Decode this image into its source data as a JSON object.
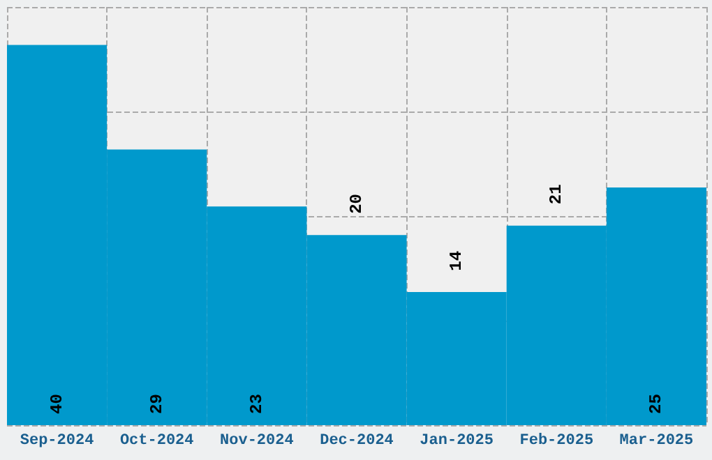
{
  "chart_data": {
    "type": "bar",
    "categories": [
      "Sep-2024",
      "Oct-2024",
      "Nov-2024",
      "Dec-2024",
      "Jan-2025",
      "Feb-2025",
      "Mar-2025"
    ],
    "values": [
      40,
      29,
      23,
      20,
      14,
      21,
      25
    ],
    "color": "#0099cc",
    "ylim": [
      0,
      44
    ],
    "tick_labels": "x",
    "grid": true,
    "data_labels": true
  }
}
